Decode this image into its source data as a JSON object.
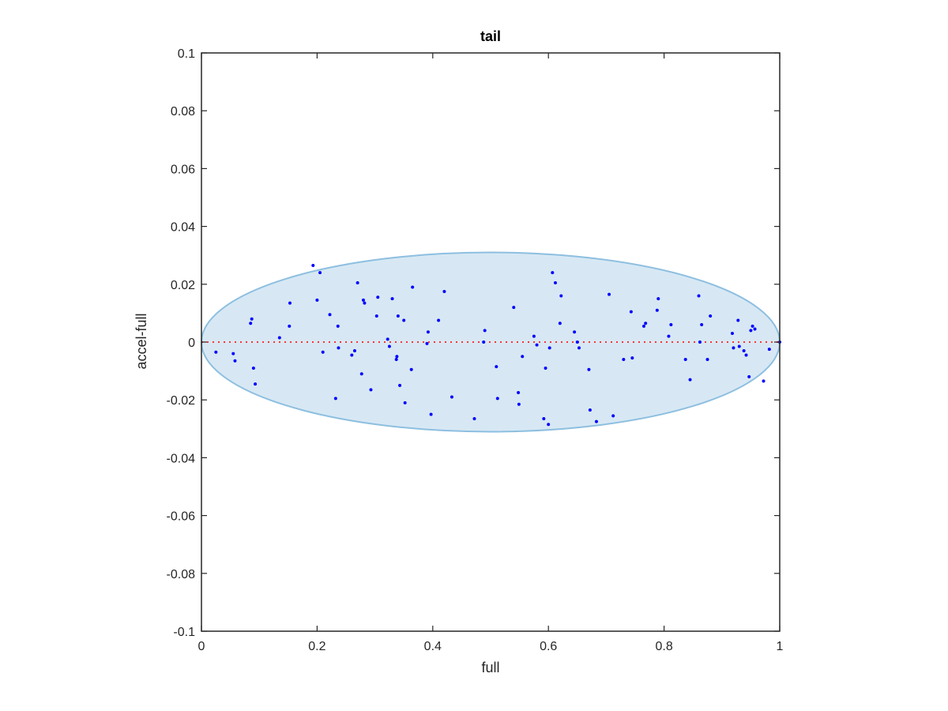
{
  "chart_data": {
    "type": "scatter",
    "title": "tail",
    "xlabel": "full",
    "ylabel": "accel-full",
    "xlim": [
      0,
      1
    ],
    "ylim": [
      -0.1,
      0.1
    ],
    "x_ticks": [
      0,
      0.2,
      0.4,
      0.6,
      0.8,
      1
    ],
    "x_tick_labels": [
      "0",
      "0.2",
      "0.4",
      "0.6",
      "0.8",
      "1"
    ],
    "y_ticks": [
      -0.1,
      -0.08,
      -0.06,
      -0.04,
      -0.02,
      0,
      0.02,
      0.04,
      0.06,
      0.08,
      0.1
    ],
    "y_tick_labels": [
      "-0.1",
      "-0.08",
      "-0.06",
      "-0.04",
      "-0.02",
      "0",
      "0.02",
      "0.04",
      "0.06",
      "0.08",
      "0.1"
    ],
    "grid": false,
    "legend": "none",
    "colors": {
      "points": "#0000ff",
      "ellipse_fill": "#d7e8f4",
      "ellipse_edge": "#8dbfe0",
      "zero_line": "#ff3333",
      "axes": "#262626"
    },
    "ellipse": {
      "center": [
        0.5,
        0
      ],
      "x_semi_axis": 0.5,
      "y_semi_axis": 0.031
    },
    "reference_line": {
      "y": 0,
      "style": "dotted"
    },
    "series": [
      {
        "points": [
          [
            0.025,
            -0.0035
          ],
          [
            0.055,
            -0.004
          ],
          [
            0.058,
            -0.0065
          ],
          [
            0.085,
            0.0065
          ],
          [
            0.087,
            0.008
          ],
          [
            0.09,
            -0.009
          ],
          [
            0.093,
            -0.0145
          ],
          [
            0.135,
            0.0015
          ],
          [
            0.152,
            0.0055
          ],
          [
            0.153,
            0.0135
          ],
          [
            0.193,
            0.0265
          ],
          [
            0.2,
            0.0145
          ],
          [
            0.205,
            0.024
          ],
          [
            0.21,
            -0.0035
          ],
          [
            0.222,
            0.0095
          ],
          [
            0.232,
            -0.0195
          ],
          [
            0.236,
            0.0055
          ],
          [
            0.237,
            -0.002
          ],
          [
            0.26,
            -0.0045
          ],
          [
            0.265,
            -0.003
          ],
          [
            0.27,
            0.0205
          ],
          [
            0.277,
            -0.011
          ],
          [
            0.28,
            0.0145
          ],
          [
            0.282,
            0.0135
          ],
          [
            0.293,
            -0.0165
          ],
          [
            0.303,
            0.009
          ],
          [
            0.305,
            0.0155
          ],
          [
            0.322,
            0.001
          ],
          [
            0.325,
            -0.0015
          ],
          [
            0.33,
            0.015
          ],
          [
            0.337,
            -0.006
          ],
          [
            0.338,
            -0.005
          ],
          [
            0.34,
            0.009
          ],
          [
            0.343,
            -0.015
          ],
          [
            0.35,
            0.0075
          ],
          [
            0.352,
            -0.021
          ],
          [
            0.363,
            -0.0095
          ],
          [
            0.365,
            0.019
          ],
          [
            0.39,
            -0.0005
          ],
          [
            0.392,
            0.0035
          ],
          [
            0.397,
            -0.025
          ],
          [
            0.41,
            0.0075
          ],
          [
            0.42,
            0.0175
          ],
          [
            0.433,
            -0.019
          ],
          [
            0.472,
            -0.0265
          ],
          [
            0.488,
            0
          ],
          [
            0.49,
            0.004
          ],
          [
            0.51,
            -0.0085
          ],
          [
            0.512,
            -0.0195
          ],
          [
            0.54,
            0.012
          ],
          [
            0.548,
            -0.0175
          ],
          [
            0.549,
            -0.0215
          ],
          [
            0.555,
            -0.005
          ],
          [
            0.575,
            0.002
          ],
          [
            0.58,
            -0.001
          ],
          [
            0.592,
            -0.0265
          ],
          [
            0.595,
            -0.009
          ],
          [
            0.6,
            -0.0285
          ],
          [
            0.602,
            -0.002
          ],
          [
            0.607,
            0.024
          ],
          [
            0.612,
            0.0205
          ],
          [
            0.62,
            0.0065
          ],
          [
            0.622,
            0.016
          ],
          [
            0.645,
            0.0035
          ],
          [
            0.65,
            0
          ],
          [
            0.653,
            -0.002
          ],
          [
            0.67,
            -0.0095
          ],
          [
            0.672,
            -0.0235
          ],
          [
            0.683,
            -0.0275
          ],
          [
            0.705,
            0.0165
          ],
          [
            0.712,
            -0.0255
          ],
          [
            0.73,
            -0.006
          ],
          [
            0.743,
            0.0105
          ],
          [
            0.745,
            -0.0055
          ],
          [
            0.765,
            0.0055
          ],
          [
            0.768,
            0.0065
          ],
          [
            0.788,
            0.011
          ],
          [
            0.79,
            0.015
          ],
          [
            0.808,
            0.002
          ],
          [
            0.812,
            0.006
          ],
          [
            0.837,
            -0.006
          ],
          [
            0.845,
            -0.013
          ],
          [
            0.86,
            0.016
          ],
          [
            0.862,
            0
          ],
          [
            0.865,
            0.006
          ],
          [
            0.875,
            -0.006
          ],
          [
            0.88,
            0.009
          ],
          [
            0.918,
            0.003
          ],
          [
            0.92,
            -0.002
          ],
          [
            0.928,
            0.0075
          ],
          [
            0.93,
            -0.0015
          ],
          [
            0.938,
            -0.003
          ],
          [
            0.942,
            -0.0045
          ],
          [
            0.947,
            -0.012
          ],
          [
            0.95,
            0.004
          ],
          [
            0.953,
            0.0055
          ],
          [
            0.957,
            0.0045
          ],
          [
            0.972,
            -0.0135
          ],
          [
            0.982,
            -0.0025
          ],
          [
            1.0,
            0
          ]
        ]
      }
    ]
  }
}
